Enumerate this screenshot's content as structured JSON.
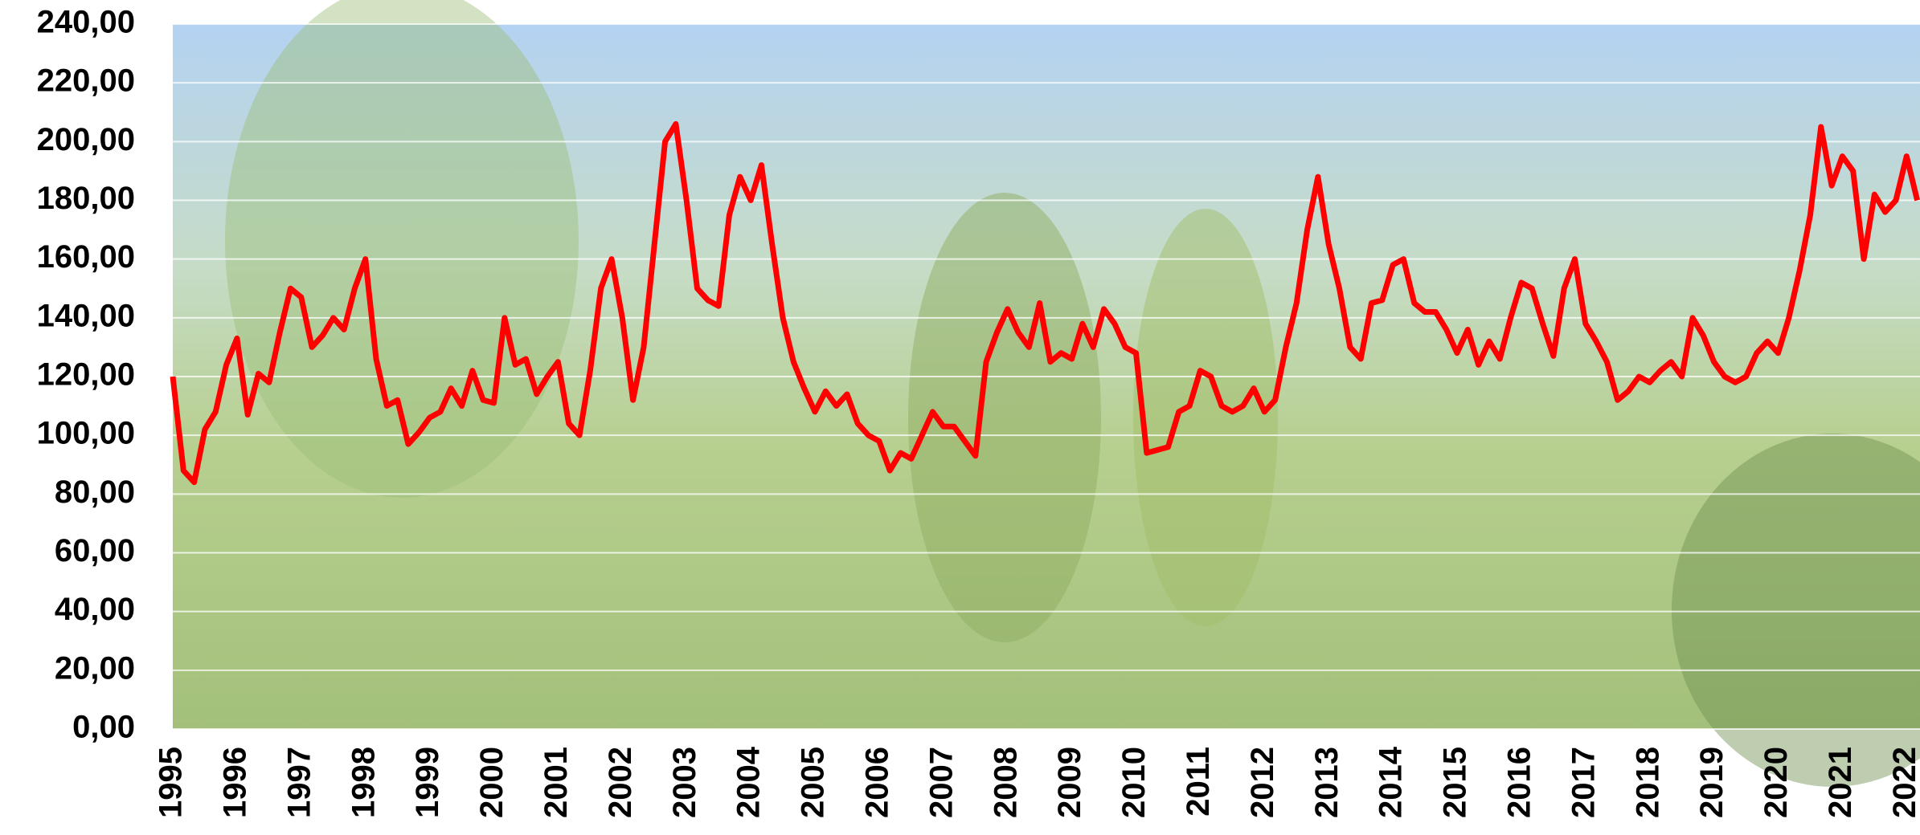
{
  "chart_data": {
    "type": "line",
    "categories": [
      "1995",
      null,
      null,
      null,
      null,
      null,
      "1996",
      null,
      null,
      null,
      null,
      null,
      "1997",
      null,
      null,
      null,
      null,
      null,
      "1998",
      null,
      null,
      null,
      null,
      null,
      "1999",
      null,
      null,
      null,
      null,
      null,
      "2000",
      null,
      null,
      null,
      null,
      null,
      "2001",
      null,
      null,
      null,
      null,
      null,
      "2002",
      null,
      null,
      null,
      null,
      null,
      "2003",
      null,
      null,
      null,
      null,
      null,
      "2004",
      null,
      null,
      null,
      null,
      null,
      "2005",
      null,
      null,
      null,
      null,
      null,
      "2006",
      null,
      null,
      null,
      null,
      null,
      "2007",
      null,
      null,
      null,
      null,
      null,
      "2008",
      null,
      null,
      null,
      null,
      null,
      "2009",
      null,
      null,
      null,
      null,
      null,
      "2010",
      null,
      null,
      null,
      null,
      null,
      "2011",
      null,
      null,
      null,
      null,
      null,
      "2012",
      null,
      null,
      null,
      null,
      null,
      "2013",
      null,
      null,
      null,
      null,
      null,
      "2014",
      null,
      null,
      null,
      null,
      null,
      "2015",
      null,
      null,
      null,
      null,
      null,
      "2016",
      null,
      null,
      null,
      null,
      null,
      "2017",
      null,
      null,
      null,
      null,
      null,
      "2018",
      null,
      null,
      null,
      null,
      null,
      "2019",
      null,
      null,
      null,
      null,
      null,
      "2020",
      null,
      null,
      null,
      null,
      null,
      "2021",
      null,
      null,
      null,
      null,
      null,
      "2022",
      null
    ],
    "values": [
      120,
      88,
      84,
      102,
      108,
      124,
      133,
      107,
      121,
      118,
      135,
      150,
      147,
      130,
      134,
      140,
      136,
      150,
      160,
      126,
      110,
      112,
      97,
      101,
      106,
      108,
      116,
      110,
      122,
      112,
      111,
      140,
      124,
      126,
      114,
      120,
      125,
      104,
      100,
      122,
      150,
      160,
      140,
      112,
      130,
      165,
      200,
      206,
      180,
      150,
      146,
      144,
      175,
      188,
      180,
      192,
      165,
      140,
      125,
      116,
      108,
      115,
      110,
      114,
      104,
      100,
      98,
      88,
      94,
      92,
      100,
      108,
      103,
      103,
      98,
      93,
      125,
      135,
      143,
      135,
      130,
      145,
      125,
      128,
      126,
      138,
      130,
      143,
      138,
      130,
      128,
      94,
      95,
      96,
      108,
      110,
      122,
      120,
      110,
      108,
      110,
      116,
      108,
      112,
      130,
      145,
      170,
      188,
      165,
      150,
      130,
      126,
      145,
      146,
      158,
      160,
      145,
      142,
      142,
      136,
      128,
      136,
      124,
      132,
      126,
      140,
      152,
      150,
      138,
      127,
      150,
      160,
      138,
      132,
      125,
      112,
      115,
      120,
      118,
      122,
      125,
      120,
      140,
      134,
      125,
      120,
      118,
      120,
      128,
      132,
      128,
      140,
      156,
      175,
      205,
      185,
      195,
      190,
      160,
      182,
      176,
      180,
      195,
      180
    ],
    "color": "#ff0000",
    "ylim": [
      0,
      240
    ],
    "yticks": [
      {
        "value": 0,
        "label": "0,00"
      },
      {
        "value": 20,
        "label": "20,00"
      },
      {
        "value": 40,
        "label": "40,00"
      },
      {
        "value": 60,
        "label": "60,00"
      },
      {
        "value": 80,
        "label": "80,00"
      },
      {
        "value": 100,
        "label": "100,00"
      },
      {
        "value": 120,
        "label": "120,00"
      },
      {
        "value": 140,
        "label": "140,00"
      },
      {
        "value": 160,
        "label": "160,00"
      },
      {
        "value": 180,
        "label": "180,00"
      },
      {
        "value": 200,
        "label": "200,00"
      },
      {
        "value": 220,
        "label": "220,00"
      },
      {
        "value": 240,
        "label": "240,00"
      }
    ],
    "grid": true
  }
}
